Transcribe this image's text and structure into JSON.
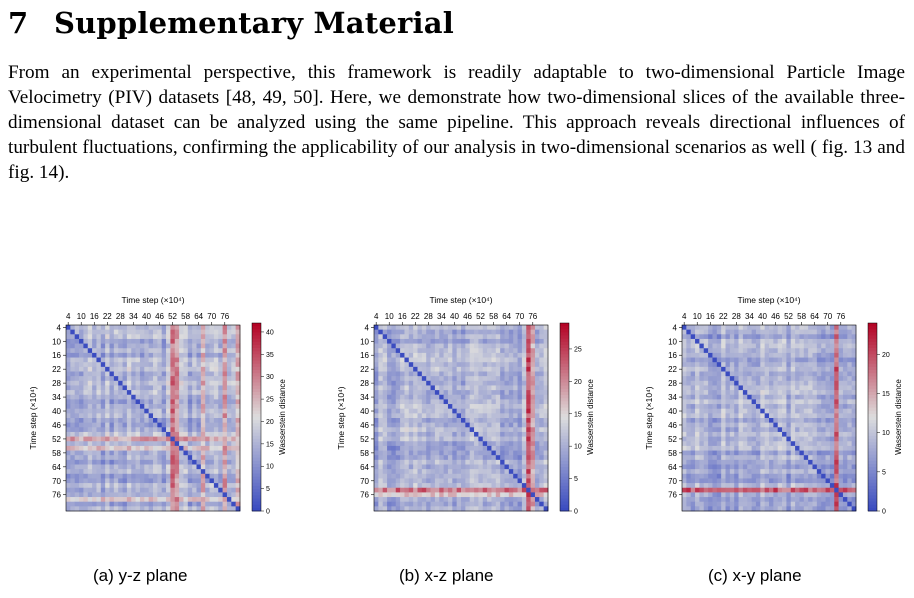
{
  "section": {
    "number": "7",
    "title": "Supplementary Material"
  },
  "paragraph": "From an experimental perspective, this framework is readily adaptable to two-dimensional Particle Image Velocimetry (PIV) datasets [48, 49, 50]. Here, we demonstrate how two-dimensional slices of the available three-dimensional dataset can be analyzed using the same pipeline. This approach reveals directional influences of turbulent fluctuations, confirming the applicability of our analysis in two-dimensional scenarios as well ( fig. 13 and fig. 14).",
  "captions": [
    "(a) y-z plane",
    "(b) x-z plane",
    "(c) x-y plane"
  ],
  "chart_data": [
    {
      "type": "heatmap",
      "title": "Time step (×10⁴)",
      "xlabel": "Time step (×10⁴)",
      "ylabel": "Time step (×10⁴)",
      "x_tick_labels": [
        "4",
        "10",
        "16",
        "22",
        "28",
        "34",
        "40",
        "46",
        "52",
        "58",
        "64",
        "70",
        "76"
      ],
      "y_tick_labels": [
        "4",
        "10",
        "16",
        "22",
        "28",
        "34",
        "40",
        "46",
        "52",
        "58",
        "64",
        "70",
        "76"
      ],
      "colorbar_label": "Wasserstein distance",
      "colorbar_ticks": [
        0,
        5,
        10,
        15,
        20,
        25,
        30,
        35,
        40
      ],
      "colorbar_range": [
        0,
        42
      ],
      "colormap": [
        "#3b4cc0",
        "#dddddd",
        "#b40426"
      ],
      "size": 40,
      "baseline": 15,
      "high_rows": [
        {
          "index": 24,
          "value": 30
        },
        {
          "index": 26,
          "value": 26
        },
        {
          "index": 37,
          "value": 26
        }
      ],
      "high_cols": [
        {
          "index": 24,
          "value": 34
        },
        {
          "index": 25,
          "value": 32
        },
        {
          "index": 31,
          "value": 28
        },
        {
          "index": 36,
          "value": 30
        },
        {
          "index": 39,
          "value": 28
        }
      ]
    },
    {
      "type": "heatmap",
      "title": "Time step (×10⁴)",
      "xlabel": "Time step (×10⁴)",
      "ylabel": "Time step (×10⁴)",
      "x_tick_labels": [
        "4",
        "10",
        "16",
        "22",
        "28",
        "34",
        "40",
        "46",
        "52",
        "58",
        "64",
        "70",
        "76"
      ],
      "y_tick_labels": [
        "4",
        "10",
        "16",
        "22",
        "28",
        "34",
        "40",
        "46",
        "52",
        "58",
        "64",
        "70",
        "76"
      ],
      "colorbar_label": "Wasserstein distance",
      "colorbar_ticks": [
        0,
        5,
        10,
        15,
        20,
        25
      ],
      "colorbar_range": [
        0,
        29
      ],
      "colormap": [
        "#3b4cc0",
        "#dddddd",
        "#b40426"
      ],
      "size": 40,
      "baseline": 10,
      "high_rows": [
        {
          "index": 35,
          "value": 24
        },
        {
          "index": 36,
          "value": 18
        }
      ],
      "high_cols": [
        {
          "index": 35,
          "value": 26
        },
        {
          "index": 36,
          "value": 20
        }
      ]
    },
    {
      "type": "heatmap",
      "title": "Time step (×10⁴)",
      "xlabel": "Time step (×10⁴)",
      "ylabel": "Time step (×10⁴)",
      "x_tick_labels": [
        "4",
        "10",
        "16",
        "22",
        "28",
        "34",
        "40",
        "46",
        "52",
        "58",
        "64",
        "70",
        "76"
      ],
      "y_tick_labels": [
        "4",
        "10",
        "16",
        "22",
        "28",
        "34",
        "40",
        "46",
        "52",
        "58",
        "64",
        "70",
        "76"
      ],
      "colorbar_label": "Wasserstein distance",
      "colorbar_ticks": [
        0,
        5,
        10,
        15,
        20
      ],
      "colorbar_range": [
        0,
        24
      ],
      "colormap": [
        "#3b4cc0",
        "#dddddd",
        "#b40426"
      ],
      "size": 40,
      "baseline": 8,
      "high_rows": [
        {
          "index": 35,
          "value": 21
        }
      ],
      "high_cols": [
        {
          "index": 35,
          "value": 21
        }
      ]
    }
  ]
}
